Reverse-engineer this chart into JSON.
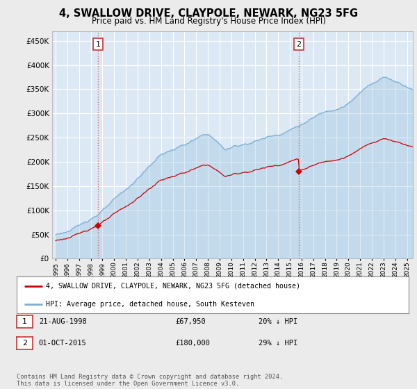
{
  "title": "4, SWALLOW DRIVE, CLAYPOLE, NEWARK, NG23 5FG",
  "subtitle": "Price paid vs. HM Land Registry's House Price Index (HPI)",
  "ytick_values": [
    0,
    50000,
    100000,
    150000,
    200000,
    250000,
    300000,
    350000,
    400000,
    450000
  ],
  "ylim": [
    0,
    470000
  ],
  "xlim_start": 1994.7,
  "xlim_end": 2025.5,
  "sale1_date": 1998.62,
  "sale1_price": 67950,
  "sale2_date": 2015.75,
  "sale2_price": 180000,
  "sale_color": "#cc0000",
  "hpi_color": "#7bafd4",
  "hpi_fill_color": "#ddeeff",
  "legend_sale_label": "4, SWALLOW DRIVE, CLAYPOLE, NEWARK, NG23 5FG (detached house)",
  "legend_hpi_label": "HPI: Average price, detached house, South Kesteven",
  "table_rows": [
    {
      "num": "1",
      "date": "21-AUG-1998",
      "price": "£67,950",
      "hpi": "20% ↓ HPI"
    },
    {
      "num": "2",
      "date": "01-OCT-2015",
      "price": "£180,000",
      "hpi": "29% ↓ HPI"
    }
  ],
  "footnote": "Contains HM Land Registry data © Crown copyright and database right 2024.\nThis data is licensed under the Open Government Licence v3.0.",
  "bg_color": "#ebebeb",
  "plot_bg_color": "#dce9f5",
  "grid_color": "#ffffff"
}
